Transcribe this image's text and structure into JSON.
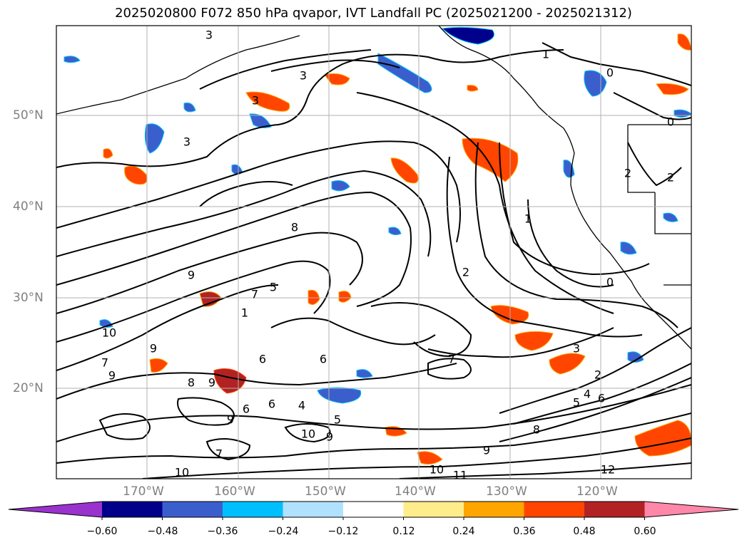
{
  "title": "2025020800 F072 850 hPa qvapor, IVT Landfall PC (2025021200 - 2025021312)",
  "lat_labels": [
    "50°N",
    "40°N",
    "30°N",
    "20°N"
  ],
  "lon_labels": [
    "170°W",
    "160°W",
    "150°W",
    "140°W",
    "130°W",
    "120°W"
  ],
  "colorbar": {
    "colors": [
      "#9a32cd",
      "#00008b",
      "#3a5fcd",
      "#00bfff",
      "#b0e2ff",
      "#ffffff",
      "#ffec8b",
      "#ffa500",
      "#ff4500",
      "#b22222",
      "#ff88aa"
    ],
    "tick_labels": [
      "−0.60",
      "−0.48",
      "−0.36",
      "−0.24",
      "−0.12",
      "0.12",
      "0.24",
      "0.36",
      "0.48",
      "0.60"
    ],
    "min": -0.6,
    "max": 0.6
  },
  "contour_labels": [
    "3",
    "3",
    "3",
    "3",
    "1",
    "0",
    "0",
    "2",
    "2",
    "1",
    "8",
    "9",
    "7",
    "5",
    "1",
    "2",
    "0",
    "3",
    "2",
    "10",
    "9",
    "7",
    "9",
    "8",
    "9",
    "6",
    "6",
    "6",
    "7",
    "6",
    "5",
    "4",
    "6",
    "5",
    "4",
    "9",
    "7",
    "10",
    "9",
    "10",
    "11",
    "12",
    "9",
    "10",
    "8"
  ],
  "colors": {
    "coast": "#000000",
    "contour": "#000000",
    "grid": "#b0b0b0",
    "axis_label": "#808080"
  }
}
